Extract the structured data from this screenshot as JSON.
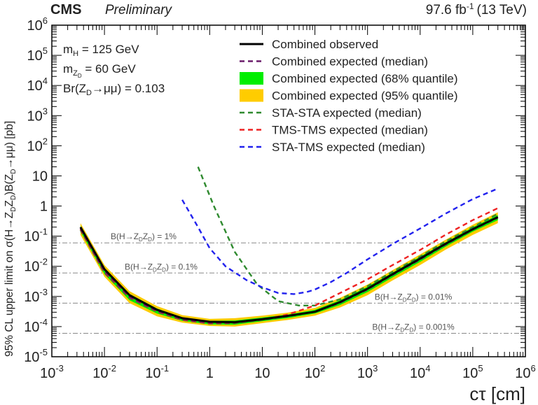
{
  "chart_data": {
    "type": "line",
    "header": {
      "experiment": "CMS",
      "status": "Preliminary",
      "lumi": "97.6 fb",
      "lumi_sup": "-1",
      "energy": "(13 TeV)"
    },
    "xlabel": "cτ [cm]",
    "ylabel": "95% CL upper limit on σ(H→Z_DZ_D)B(Z_D→μμ) [pb]",
    "xscale": "log",
    "yscale": "log",
    "xlim": [
      0.001,
      1000000
    ],
    "ylim": [
      1e-05,
      1000000
    ],
    "x_ticks": [
      {
        "value": 0.001,
        "base": "10",
        "exp": "-3"
      },
      {
        "value": 0.01,
        "base": "10",
        "exp": "-2"
      },
      {
        "value": 0.1,
        "base": "10",
        "exp": "-1"
      },
      {
        "value": 1,
        "base": "1",
        "exp": ""
      },
      {
        "value": 10,
        "base": "10",
        "exp": ""
      },
      {
        "value": 100,
        "base": "10",
        "exp": "2"
      },
      {
        "value": 1000,
        "base": "10",
        "exp": "3"
      },
      {
        "value": 10000,
        "base": "10",
        "exp": "4"
      },
      {
        "value": 100000,
        "base": "10",
        "exp": "5"
      },
      {
        "value": 1000000,
        "base": "10",
        "exp": "6"
      }
    ],
    "y_ticks": [
      {
        "value": 1e-05,
        "base": "10",
        "exp": "-5"
      },
      {
        "value": 0.0001,
        "base": "10",
        "exp": "-4"
      },
      {
        "value": 0.001,
        "base": "10",
        "exp": "-3"
      },
      {
        "value": 0.01,
        "base": "10",
        "exp": "-2"
      },
      {
        "value": 0.1,
        "base": "10",
        "exp": "-1"
      },
      {
        "value": 1,
        "base": "1",
        "exp": ""
      },
      {
        "value": 10,
        "base": "10",
        "exp": ""
      },
      {
        "value": 100,
        "base": "10",
        "exp": "2"
      },
      {
        "value": 1000,
        "base": "10",
        "exp": "3"
      },
      {
        "value": 10000,
        "base": "10",
        "exp": "4"
      },
      {
        "value": 100000,
        "base": "10",
        "exp": "5"
      },
      {
        "value": 1000000,
        "base": "10",
        "exp": "6"
      }
    ],
    "params": [
      "m_H = 125 GeV",
      "m_Z_D = 60 GeV",
      "Br(Z_D→μμ) = 0.103"
    ],
    "legend": [
      {
        "label": "Combined observed",
        "style": "solid",
        "color": "#000000"
      },
      {
        "label": "Combined expected (median)",
        "style": "dashed",
        "color": "#6a1b6a"
      },
      {
        "label": "Combined expected (68% quantile)",
        "style": "box",
        "color": "#00ee00"
      },
      {
        "label": "Combined expected (95% quantile)",
        "style": "box",
        "color": "#ffcc00"
      },
      {
        "label": "STA-STA expected (median)",
        "style": "dashed",
        "color": "#2f8a2f"
      },
      {
        "label": "TMS-TMS expected (median)",
        "style": "dashed",
        "color": "#ee2222"
      },
      {
        "label": "STA-TMS expected (median)",
        "style": "dashed",
        "color": "#2222ee"
      }
    ],
    "reference_lines": [
      {
        "label": "B(H→Z_DZ_D) = 1%",
        "y": 0.06
      },
      {
        "label": "B(H→Z_DZ_D) = 0.1%",
        "y": 0.006
      },
      {
        "label": "B(H→Z_DZ_D) = 0.01%",
        "y": 0.0006
      },
      {
        "label": "B(H→Z_DZ_D) = 0.001%",
        "y": 6e-05
      }
    ],
    "band95": {
      "x": [
        0.0035,
        0.01,
        0.03,
        0.1,
        0.3,
        1,
        3,
        10,
        30,
        100,
        300,
        1000,
        3000,
        10000,
        30000,
        100000,
        300000
      ],
      "lo": [
        0.11,
        0.0045,
        0.0006,
        0.00022,
        0.000135,
        0.000105,
        0.0001,
        0.00013,
        0.000165,
        0.00023,
        0.00043,
        0.0011,
        0.0034,
        0.011,
        0.035,
        0.11,
        0.27
      ],
      "hi": [
        0.27,
        0.011,
        0.0015,
        0.00048,
        0.00024,
        0.00018,
        0.00019,
        0.00023,
        0.00029,
        0.00042,
        0.0009,
        0.0025,
        0.0075,
        0.025,
        0.075,
        0.24,
        0.62
      ]
    },
    "band68": {
      "x": [
        0.0035,
        0.01,
        0.03,
        0.1,
        0.3,
        1,
        3,
        10,
        30,
        100,
        300,
        1000,
        3000,
        10000,
        30000,
        100000,
        300000
      ],
      "lo": [
        0.14,
        0.0055,
        0.00075,
        0.00027,
        0.000155,
        0.000118,
        0.000115,
        0.00015,
        0.00019,
        0.00027,
        0.00052,
        0.0014,
        0.0043,
        0.014,
        0.044,
        0.14,
        0.34
      ],
      "hi": [
        0.22,
        0.0085,
        0.0012,
        0.0004,
        0.0002,
        0.000155,
        0.00016,
        0.0002,
        0.00025,
        0.00036,
        0.00075,
        0.0021,
        0.0062,
        0.021,
        0.062,
        0.2,
        0.5
      ]
    },
    "series": [
      {
        "name": "Combined observed",
        "color": "#000000",
        "style": "solid",
        "x": [
          0.0035,
          0.01,
          0.03,
          0.1,
          0.3,
          1,
          3,
          10,
          30,
          100,
          300,
          1000,
          3000,
          10000,
          30000,
          100000,
          300000
        ],
        "y": [
          0.2,
          0.008,
          0.0011,
          0.00036,
          0.00019,
          0.000145,
          0.00014,
          0.000175,
          0.000225,
          0.00031,
          0.00065,
          0.0018,
          0.0055,
          0.018,
          0.055,
          0.17,
          0.43
        ]
      },
      {
        "name": "Combined expected (median)",
        "color": "#6a1b6a",
        "style": "dashed",
        "x": [
          0.0035,
          0.01,
          0.03,
          0.1,
          0.3,
          1,
          3,
          10,
          30,
          100,
          300,
          1000,
          3000,
          10000,
          30000,
          100000,
          300000
        ],
        "y": [
          0.18,
          0.0068,
          0.00095,
          0.00033,
          0.000175,
          0.000135,
          0.000135,
          0.00017,
          0.00022,
          0.00031,
          0.00062,
          0.0017,
          0.0052,
          0.017,
          0.052,
          0.165,
          0.41
        ]
      },
      {
        "name": "STA-STA expected (median)",
        "color": "#2f8a2f",
        "style": "dashed",
        "x": [
          0.0035,
          0.01,
          0.03,
          0.1,
          0.3,
          1,
          3,
          0.6,
          1.2,
          3,
          8,
          20,
          50,
          100,
          300,
          1000,
          3000,
          10000,
          30000,
          100000,
          300000
        ],
        "y": [
          0.16,
          0.006,
          0.0009,
          0.00031,
          0.000165,
          0.000125,
          0.00013,
          null,
          null,
          null,
          null,
          null,
          null,
          null,
          null,
          null,
          null,
          null,
          null,
          null,
          null
        ],
        "segments": [
          {
            "x": [
              0.0035,
              0.01,
              0.03,
              0.1,
              0.3,
              1,
              3
            ],
            "y": [
              0.16,
              0.006,
              0.0009,
              0.00031,
              0.000165,
              0.000125,
              0.00013
            ]
          },
          {
            "x": [
              0.6,
              1.2,
              3,
              8,
              20,
              50,
              100,
              300,
              1000,
              3000,
              10000,
              30000,
              100000,
              300000
            ],
            "y": [
              20,
              1.0,
              0.03,
              0.0025,
              0.0007,
              0.0005,
              0.0005,
              0.0008,
              0.0022,
              0.0066,
              0.021,
              0.066,
              0.2,
              0.55
            ]
          }
        ]
      },
      {
        "name": "TMS-TMS expected (median)",
        "color": "#ee2222",
        "style": "dashed",
        "segments": [
          {
            "x": [
              0.0035,
              0.01,
              0.03,
              0.1,
              0.3,
              1,
              3,
              10,
              30,
              100,
              300,
              1000,
              3000,
              10000,
              30000,
              100000,
              300000
            ],
            "y": [
              0.17,
              0.0065,
              0.00093,
              0.00032,
              0.00017,
              0.00013,
              0.000133,
              0.00017,
              0.00025,
              0.0005,
              0.0013,
              0.0037,
              0.011,
              0.035,
              0.11,
              0.34,
              0.85
            ]
          }
        ]
      },
      {
        "name": "STA-TMS expected (median)",
        "color": "#2222ee",
        "style": "dashed",
        "segments": [
          {
            "x": [
              0.3,
              0.6,
              1,
              2,
              5,
              10,
              20,
              40,
              70,
              100,
              200,
              400,
              1000,
              3000,
              10000,
              30000,
              100000,
              300000
            ],
            "y": [
              1.6,
              0.2,
              0.04,
              0.01,
              0.0035,
              0.002,
              0.0013,
              0.0012,
              0.0014,
              0.0017,
              0.003,
              0.006,
              0.017,
              0.055,
              0.18,
              0.55,
              1.7,
              3.8
            ]
          }
        ]
      }
    ]
  }
}
